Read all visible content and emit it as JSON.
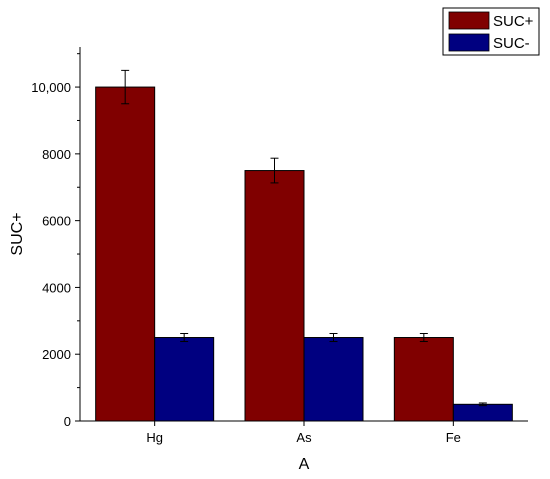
{
  "chart_data": {
    "type": "bar",
    "title": "",
    "xlabel": "A",
    "ylabel": "SUC+",
    "categories": [
      "Hg",
      "As",
      "Fe"
    ],
    "series": [
      {
        "name": "SUC+",
        "color": "#800000",
        "values": [
          10000,
          7500,
          2500
        ],
        "errors": [
          500,
          370,
          120
        ]
      },
      {
        "name": "SUC-",
        "color": "#000080",
        "values": [
          2500,
          2500,
          500
        ],
        "errors": [
          120,
          120,
          40
        ]
      }
    ],
    "ylim": [
      0,
      11200
    ],
    "yticks": [
      0,
      2000,
      4000,
      6000,
      8000,
      10000
    ],
    "ytick_labels": [
      "0",
      "2000",
      "4000",
      "6000",
      "8000",
      "10,000"
    ],
    "legend_position": "top-right",
    "grid": false
  }
}
